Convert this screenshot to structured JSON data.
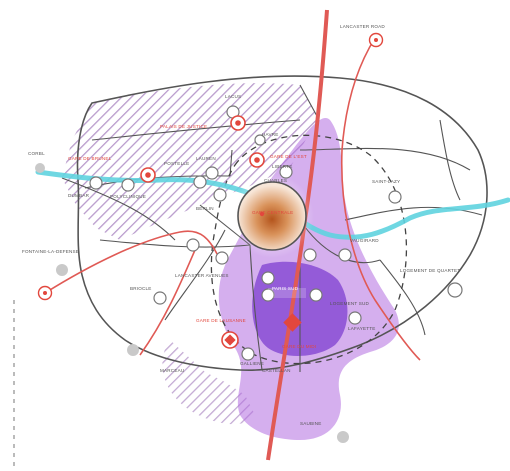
{
  "map": {
    "colors": {
      "river": "#5fd3df",
      "rail": "#e05a55",
      "purple_zone": "#b36ee0",
      "purple_core": "#7e3fd0",
      "hatch": "#b99bcc",
      "boundary": "#555555",
      "center_glow": "#b4541c"
    },
    "labels": {
      "top_right_road": "LANCASTER ROAD",
      "top_left": "LACUS",
      "far_left": "CORBL",
      "left_red": "GARE DE BRUNEL",
      "left_a": "DUMBAR",
      "left_b": "POLYCLINIQUE",
      "mid_a": "POSTELLE",
      "mid_b": "LAUREN",
      "mid_c": "BERLIN",
      "north_red_1": "PALAIS DE JUSTICE",
      "north_red_2": "GARE DE L'EST",
      "north_c": "HAVRE",
      "north_d": "LIBERTE",
      "north_e": "CHARLES",
      "centre_label": "GARE CENTRALE",
      "east_a": "SAINT-LAZY",
      "east_b": "VAUGIRARD",
      "east_c": "LOGEMENT DE QUARTET",
      "west_far": "FONTAINE-LA-DEFENSE",
      "south_a": "LANCASTER AVENUES",
      "south_b": "PARIS SUD",
      "south_c": "LOGEMENT SUD",
      "south_d": "GARE DE LAUSANNE",
      "south_e": "BRIOCLE",
      "south_f": "MARCEAU",
      "south_g": "GARE DU MIDI",
      "south_h": "CASTELLAN",
      "bottom_a": "SAUBINE",
      "bottom_b": "GALLIENE",
      "bottom_c": "LAFAYETTE"
    }
  }
}
